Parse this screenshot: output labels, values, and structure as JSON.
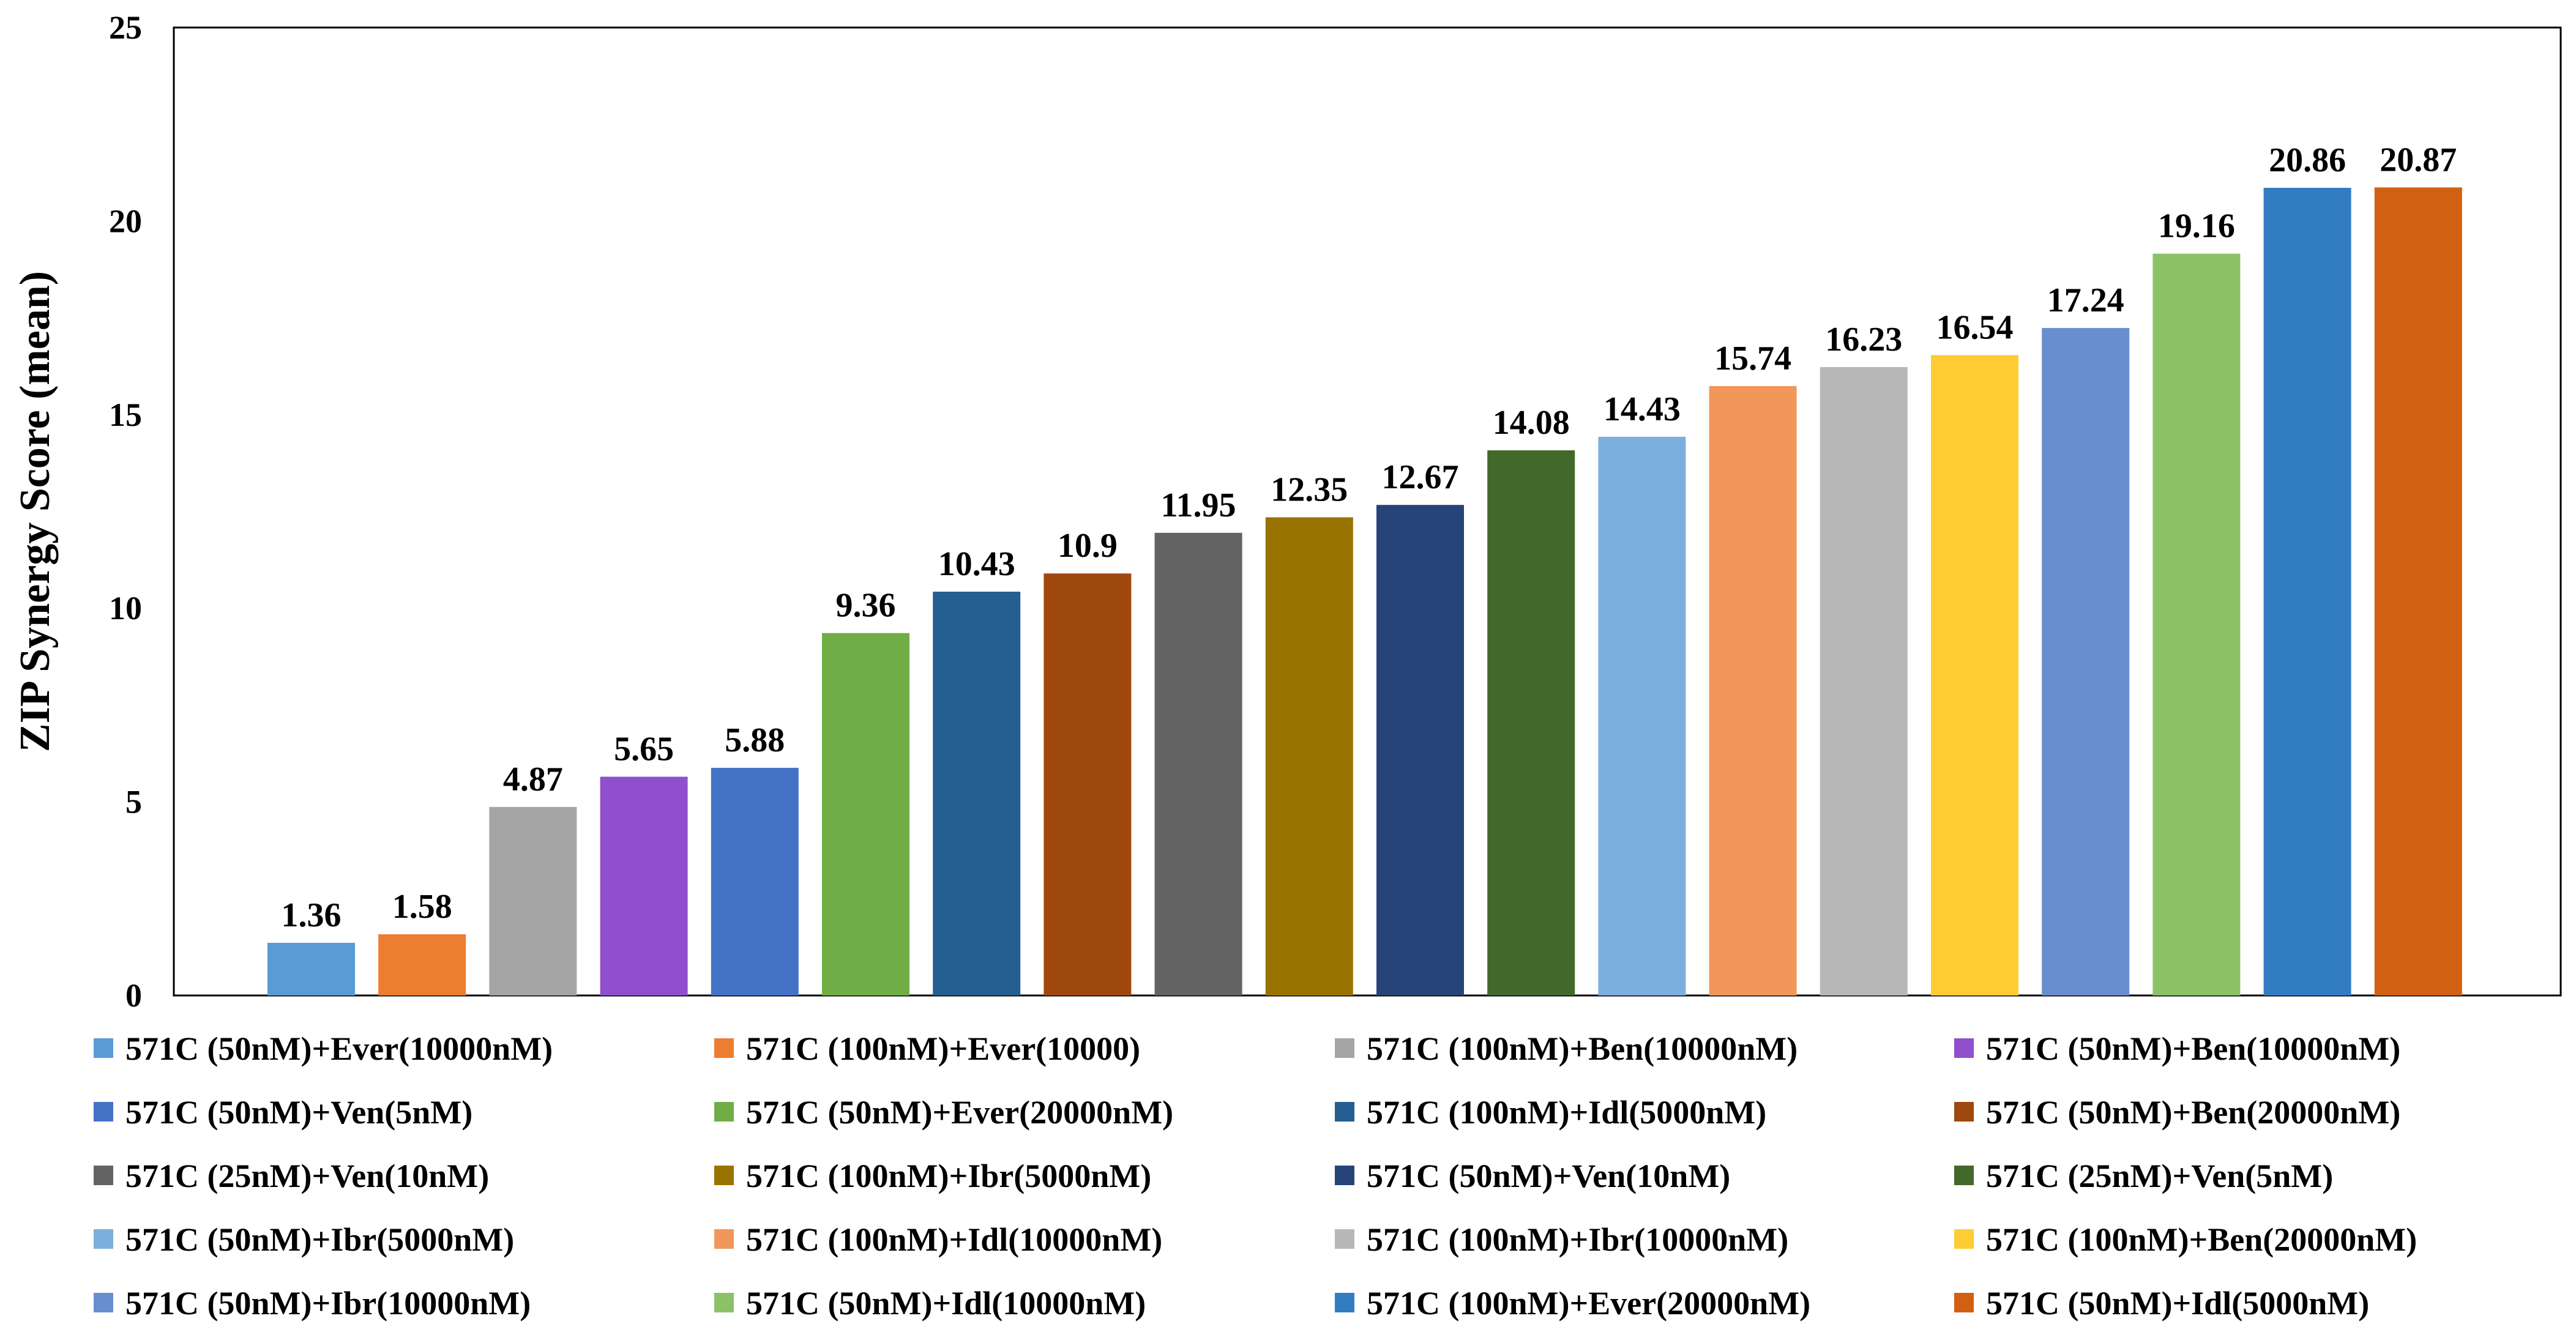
{
  "chart_data": {
    "type": "bar",
    "title": "",
    "xlabel": "",
    "ylabel": "ZIP Synergy Score (mean)",
    "ylim": [
      0,
      25
    ],
    "yticks": [
      "0",
      "5",
      "10",
      "15",
      "20",
      "25"
    ],
    "grid": false,
    "legend_position": "bottom",
    "series": [
      {
        "name": "571C (50nM)+Ever(10000nM)",
        "value": 1.36,
        "label": "1.36",
        "color": "#5B9BD5"
      },
      {
        "name": "571C (100nM)+Ever(10000)",
        "value": 1.58,
        "label": "1.58",
        "color": "#ED7D31"
      },
      {
        "name": "571C (100nM)+Ben(10000nM)",
        "value": 4.87,
        "label": "4.87",
        "color": "#A5A5A5"
      },
      {
        "name": "571C (50nM)+Ben(10000nM)",
        "value": 5.65,
        "label": "5.65",
        "color": "#904FCC"
      },
      {
        "name": "571C (50nM)+Ven(5nM)",
        "value": 5.88,
        "label": "5.88",
        "color": "#4472C4"
      },
      {
        "name": "571C (50nM)+Ever(20000nM)",
        "value": 9.36,
        "label": "9.36",
        "color": "#70AD47"
      },
      {
        "name": "571C (100nM)+Idl(5000nM)",
        "value": 10.43,
        "label": "10.43",
        "color": "#255E91"
      },
      {
        "name": "571C (50nM)+Ben(20000nM)",
        "value": 10.9,
        "label": "10.9",
        "color": "#9E480E"
      },
      {
        "name": "571C (25nM)+Ven(10nM)",
        "value": 11.95,
        "label": "11.95",
        "color": "#636363"
      },
      {
        "name": "571C (100nM)+Ibr(5000nM)",
        "value": 12.35,
        "label": "12.35",
        "color": "#997300"
      },
      {
        "name": "571C (50nM)+Ven(10nM)",
        "value": 12.67,
        "label": "12.67",
        "color": "#264478"
      },
      {
        "name": "571C (25nM)+Ven(5nM)",
        "value": 14.08,
        "label": "14.08",
        "color": "#43682B"
      },
      {
        "name": "571C (50nM)+Ibr(5000nM)",
        "value": 14.43,
        "label": "14.43",
        "color": "#7CAFDD"
      },
      {
        "name": "571C (100nM)+Idl(10000nM)",
        "value": 15.74,
        "label": "15.74",
        "color": "#F1975A"
      },
      {
        "name": "571C (100nM)+Ibr(10000nM)",
        "value": 16.23,
        "label": "16.23",
        "color": "#B7B7B7"
      },
      {
        "name": "571C (100nM)+Ben(20000nM)",
        "value": 16.54,
        "label": "16.54",
        "color": "#FFCD33"
      },
      {
        "name": "571C (50nM)+Ibr(10000nM)",
        "value": 17.24,
        "label": "17.24",
        "color": "#698ED0"
      },
      {
        "name": "571C (50nM)+Idl(10000nM)",
        "value": 19.16,
        "label": "19.16",
        "color": "#8CC168"
      },
      {
        "name": "571C (100nM)+Ever(20000nM)",
        "value": 20.86,
        "label": "20.86",
        "color": "#327DC2"
      },
      {
        "name": "571C (50nM)+Idl(5000nM)",
        "value": 20.87,
        "label": "20.87",
        "color": "#D26012"
      }
    ]
  }
}
